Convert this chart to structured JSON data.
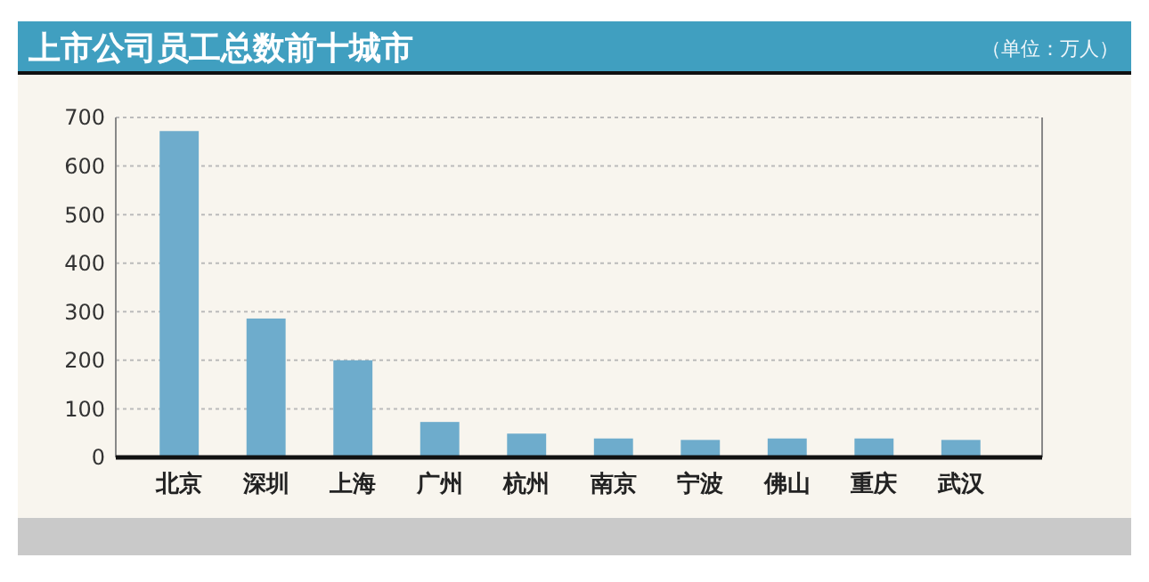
{
  "chart_data": {
    "type": "bar",
    "title": "上市公司员工总数前十城市",
    "subtitle": "（单位：万人）",
    "categories": [
      "北京",
      "深圳",
      "上海",
      "广州",
      "杭州",
      "南京",
      "宁波",
      "佛山",
      "重庆",
      "武汉"
    ],
    "values": [
      672,
      286,
      200,
      73,
      49,
      39,
      36,
      39,
      39,
      36
    ],
    "color": "#6eaccc",
    "ylim": [
      0,
      700
    ],
    "yticks": [
      0,
      100,
      200,
      300,
      400,
      500,
      600,
      700
    ],
    "grid": "y"
  }
}
